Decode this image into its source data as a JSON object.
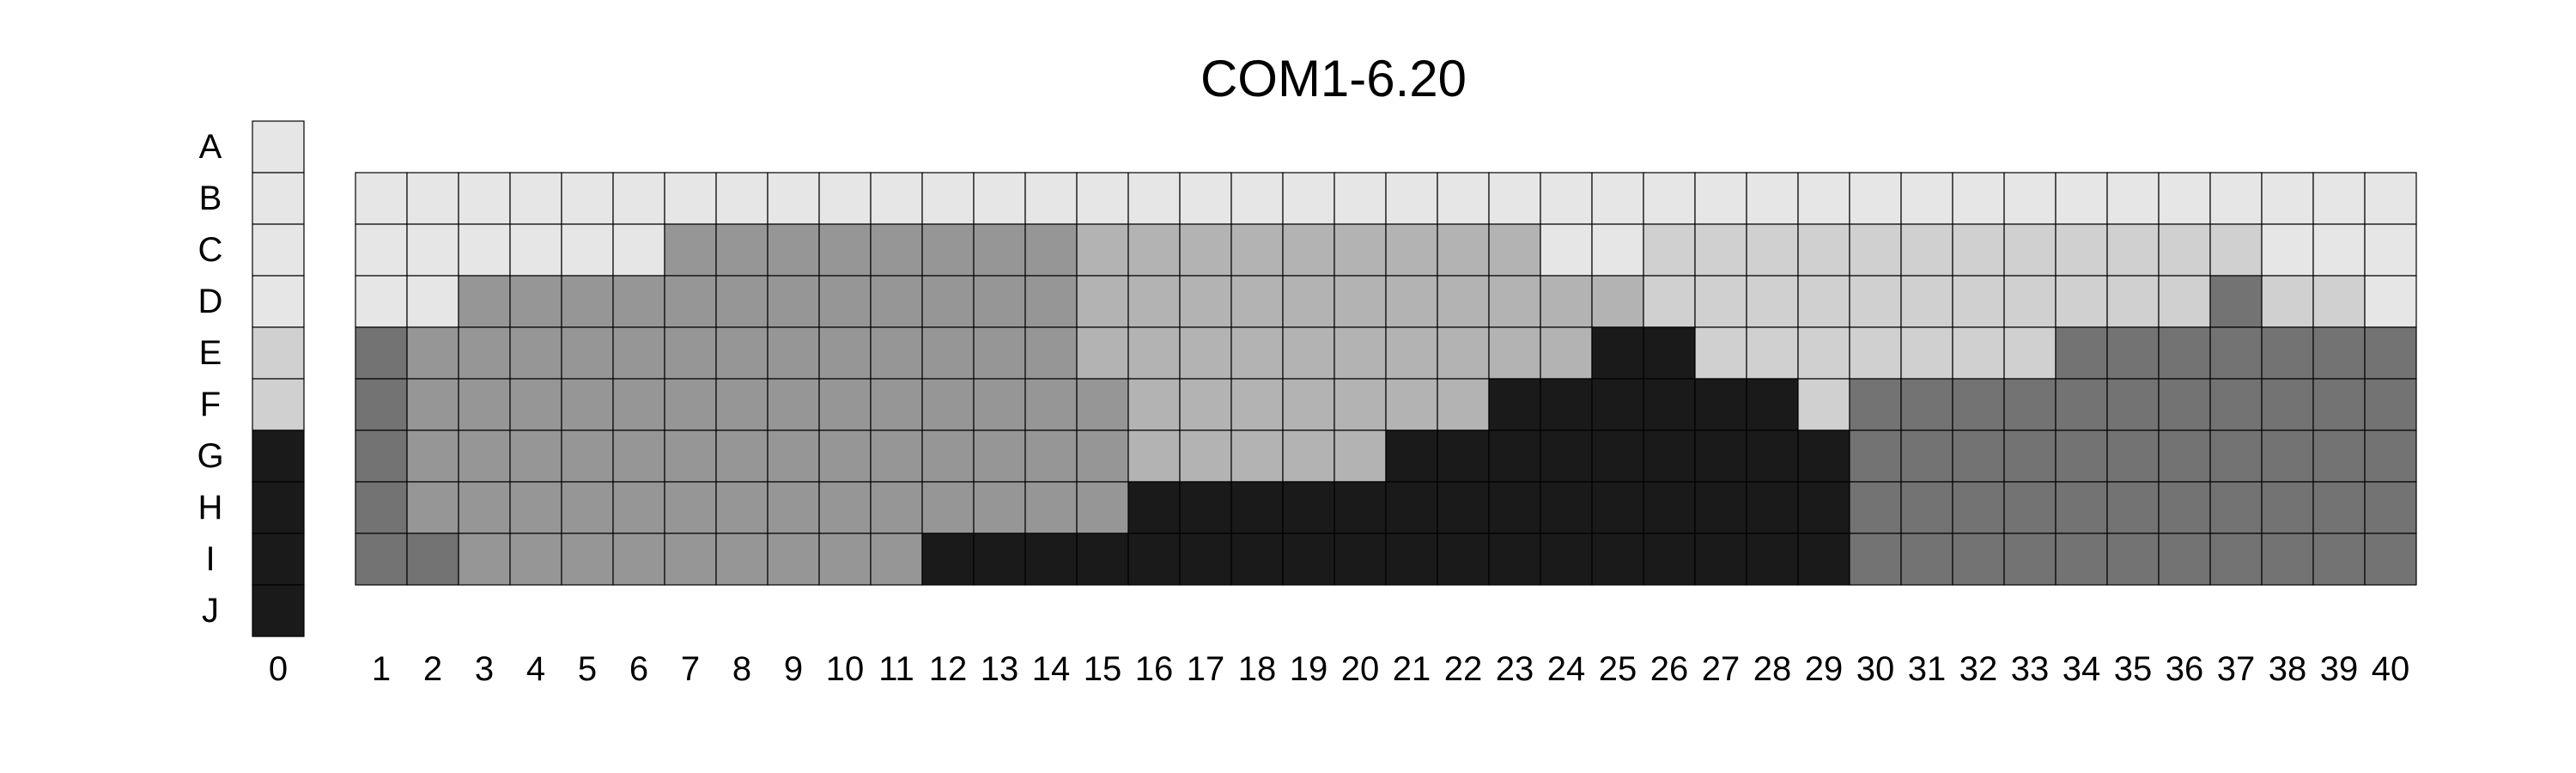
{
  "chart_data": {
    "type": "heatmap",
    "title": "COM1-6.20",
    "row_labels": [
      "A",
      "B",
      "C",
      "D",
      "E",
      "F",
      "G",
      "H",
      "I",
      "J"
    ],
    "column_labels": [
      "0",
      "1",
      "2",
      "3",
      "4",
      "5",
      "6",
      "7",
      "8",
      "9",
      "10",
      "11",
      "12",
      "13",
      "14",
      "15",
      "16",
      "17",
      "18",
      "19",
      "20",
      "21",
      "22",
      "23",
      "24",
      "25",
      "26",
      "27",
      "28",
      "29",
      "30",
      "31",
      "32",
      "33",
      "34",
      "35",
      "36",
      "37",
      "38",
      "39",
      "40"
    ],
    "levels": {
      "0": "#e6e6e6",
      "1": "#d0d0d0",
      "2": "#b3b3b3",
      "3": "#969696",
      "4": "#737373",
      "5": "#1a1a1a"
    },
    "reference_column": {
      "label": "0",
      "values": [
        0,
        0,
        0,
        0,
        1,
        1,
        5,
        5,
        5,
        5
      ]
    },
    "grid_rows": [
      "B",
      "C",
      "D",
      "E",
      "F",
      "G",
      "H",
      "I"
    ],
    "grid_columns": [
      "1",
      "2",
      "3",
      "4",
      "5",
      "6",
      "7",
      "8",
      "9",
      "10",
      "11",
      "12",
      "13",
      "14",
      "15",
      "16",
      "17",
      "18",
      "19",
      "20",
      "21",
      "22",
      "23",
      "24",
      "25",
      "26",
      "27",
      "28",
      "29",
      "30",
      "31",
      "32",
      "33",
      "34",
      "35",
      "36",
      "37",
      "38",
      "39",
      "40"
    ],
    "matrix": [
      [
        0,
        0,
        0,
        0,
        0,
        0,
        0,
        0,
        0,
        0,
        0,
        0,
        0,
        0,
        0,
        0,
        0,
        0,
        0,
        0,
        0,
        0,
        0,
        0,
        0,
        0,
        0,
        0,
        0,
        0,
        0,
        0,
        0,
        0,
        0,
        0,
        0,
        0,
        0,
        0
      ],
      [
        0,
        0,
        0,
        0,
        0,
        0,
        3,
        3,
        3,
        3,
        3,
        3,
        3,
        3,
        2,
        2,
        2,
        2,
        2,
        2,
        2,
        2,
        2,
        0,
        0,
        1,
        1,
        1,
        1,
        1,
        1,
        1,
        1,
        1,
        1,
        1,
        1,
        0,
        0,
        0
      ],
      [
        0,
        0,
        3,
        3,
        3,
        3,
        3,
        3,
        3,
        3,
        3,
        3,
        3,
        3,
        2,
        2,
        2,
        2,
        2,
        2,
        2,
        2,
        2,
        2,
        2,
        1,
        1,
        1,
        1,
        1,
        1,
        1,
        1,
        1,
        1,
        1,
        4,
        1,
        1,
        0
      ],
      [
        4,
        3,
        3,
        3,
        3,
        3,
        3,
        3,
        3,
        3,
        3,
        3,
        3,
        3,
        2,
        2,
        2,
        2,
        2,
        2,
        2,
        2,
        2,
        2,
        5,
        5,
        1,
        1,
        1,
        1,
        1,
        1,
        1,
        4,
        4,
        4,
        4,
        4,
        4,
        4
      ],
      [
        4,
        3,
        3,
        3,
        3,
        3,
        3,
        3,
        3,
        3,
        3,
        3,
        3,
        3,
        3,
        2,
        2,
        2,
        2,
        2,
        2,
        2,
        5,
        5,
        5,
        5,
        5,
        5,
        1,
        4,
        4,
        4,
        4,
        4,
        4,
        4,
        4,
        4,
        4,
        4
      ],
      [
        4,
        3,
        3,
        3,
        3,
        3,
        3,
        3,
        3,
        3,
        3,
        3,
        3,
        3,
        3,
        2,
        2,
        2,
        2,
        2,
        5,
        5,
        5,
        5,
        5,
        5,
        5,
        5,
        5,
        4,
        4,
        4,
        4,
        4,
        4,
        4,
        4,
        4,
        4,
        4
      ],
      [
        4,
        3,
        3,
        3,
        3,
        3,
        3,
        3,
        3,
        3,
        3,
        3,
        3,
        3,
        3,
        5,
        5,
        5,
        5,
        5,
        5,
        5,
        5,
        5,
        5,
        5,
        5,
        5,
        5,
        4,
        4,
        4,
        4,
        4,
        4,
        4,
        4,
        4,
        4,
        4
      ],
      [
        4,
        4,
        3,
        3,
        3,
        3,
        3,
        3,
        3,
        3,
        3,
        5,
        5,
        5,
        5,
        5,
        5,
        5,
        5,
        5,
        5,
        5,
        5,
        5,
        5,
        5,
        5,
        5,
        5,
        4,
        4,
        4,
        4,
        4,
        4,
        4,
        4,
        4,
        4,
        4
      ]
    ]
  }
}
